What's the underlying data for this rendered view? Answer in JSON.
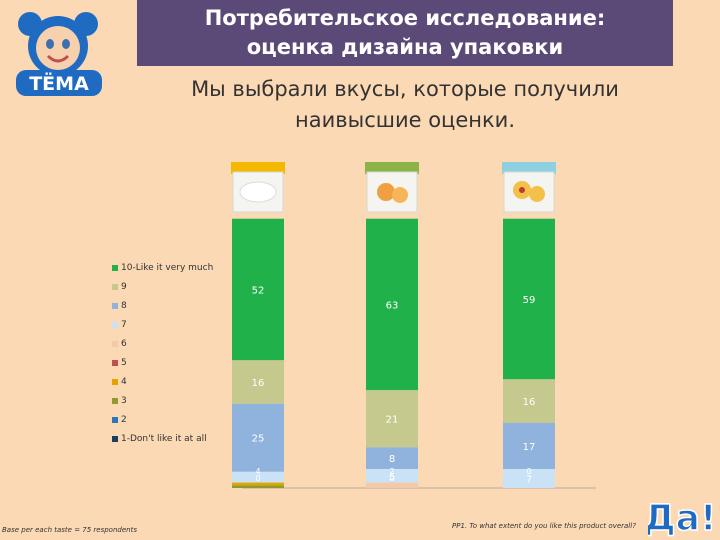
{
  "header": {
    "title_line1": "Потребительское исследование:",
    "title_line2": "оценка дизайна упаковки"
  },
  "subtitle": {
    "line1": "Мы выбрали вкусы, которые получили",
    "line2": "наивысшие оценки."
  },
  "logo": {
    "text": "ТЁМА",
    "icon": "bear-baby-logo-icon"
  },
  "da_logo": {
    "text": "Да!",
    "icon": "da-logo-icon"
  },
  "footnotes": {
    "base": "Base per each taste = 75 respondents",
    "question": "PP1. To what extent do you like this product overall?"
  },
  "chart_data": {
    "type": "bar",
    "stacked": true,
    "categories": [
      "",
      "",
      ""
    ],
    "product_images": [
      "yogurt-package-icon",
      "apricot-package-icon",
      "peach-package-icon"
    ],
    "product_colors": [
      "#f5b800",
      "#8ab34a",
      "#8ecfe0"
    ],
    "ylim": [
      0,
      100
    ],
    "legend_position": "left",
    "grid": false,
    "series": [
      {
        "name": "10-Like it very much",
        "color": "#21b14b",
        "values": [
          52,
          63,
          59
        ]
      },
      {
        "name": "9",
        "color": "#c5c98d",
        "values": [
          16,
          21,
          16
        ]
      },
      {
        "name": "8",
        "color": "#8fb3dc",
        "values": [
          25,
          8,
          17
        ]
      },
      {
        "name": "7",
        "color": "#c9e2f5",
        "values": [
          4,
          5,
          7
        ]
      },
      {
        "name": "6",
        "color": "#f3c9a9",
        "values": [
          0,
          2,
          0
        ]
      },
      {
        "name": "5",
        "color": "#c0504d",
        "values": [
          0,
          0,
          0
        ]
      },
      {
        "name": "4",
        "color": "#e3a400",
        "values": [
          1,
          0,
          0
        ]
      },
      {
        "name": "3",
        "color": "#8f9b2a",
        "values": [
          1,
          0,
          0
        ]
      },
      {
        "name": "2",
        "color": "#2e75b6",
        "values": [
          0,
          0,
          0
        ]
      },
      {
        "name": "1-Don't like it at all",
        "color": "#1f3d63",
        "values": [
          0,
          0,
          0
        ]
      }
    ],
    "data_labels": [
      [
        {
          "series": 0,
          "text": "52"
        },
        {
          "series": 1,
          "text": "16"
        },
        {
          "series": 2,
          "text": "25"
        },
        {
          "series": 3,
          "text": "4"
        },
        {
          "series": 4,
          "text": "0"
        }
      ],
      [
        {
          "series": 0,
          "text": "63"
        },
        {
          "series": 1,
          "text": "21"
        },
        {
          "series": 2,
          "text": "8"
        },
        {
          "series": 3,
          "text": "5"
        },
        {
          "series": 4,
          "text": "2"
        },
        {
          "series": 5,
          "text": "0"
        }
      ],
      [
        {
          "series": 0,
          "text": "59"
        },
        {
          "series": 1,
          "text": "16"
        },
        {
          "series": 2,
          "text": "17"
        },
        {
          "series": 3,
          "text": "7"
        },
        {
          "series": 4,
          "text": "0"
        }
      ]
    ]
  }
}
